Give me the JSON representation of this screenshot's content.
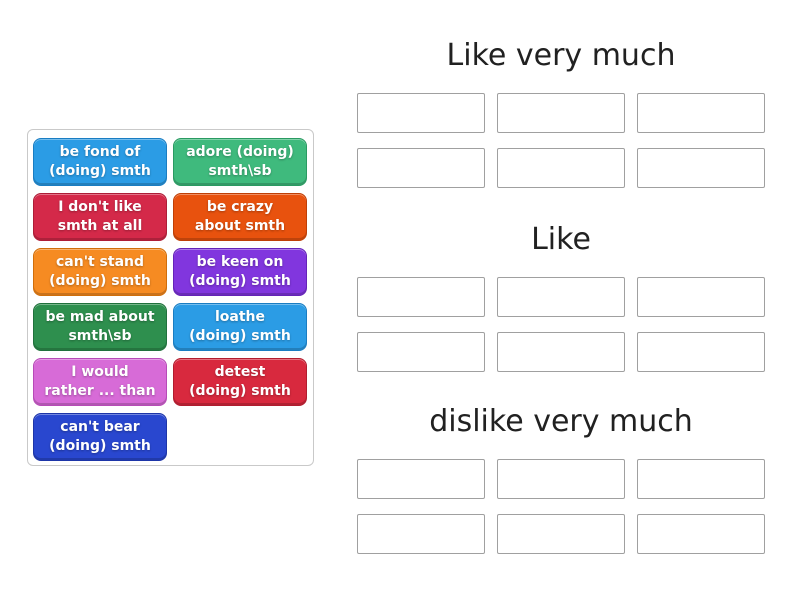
{
  "page": {
    "background_color": "#ffffff",
    "heading_color": "#212121",
    "slot_border_color": "#a0a0a0",
    "panel_border_color": "#c9c9c9"
  },
  "source_panel": {
    "chips": [
      {
        "line1": "be fond of",
        "line2": "(doing) smth",
        "label": "be fond of (doing) smth",
        "color": "#2b9ce5",
        "border": "#1a7dc2"
      },
      {
        "line1": "adore (doing)",
        "line2": "smth\\sb",
        "label": "adore (doing) smth\\sb",
        "color": "#3fba7d",
        "border": "#2a9a62"
      },
      {
        "line1": "I don't like",
        "line2": "smth at all",
        "label": "I don't like smth at all",
        "color": "#d42949",
        "border": "#ad1d37"
      },
      {
        "line1": "be crazy",
        "line2": "about smth",
        "label": "be crazy about smth",
        "color": "#e8520e",
        "border": "#bf3f06"
      },
      {
        "line1": "can't stand",
        "line2": "(doing) smth",
        "label": "can't stand (doing) smth",
        "color": "#f68b22",
        "border": "#d06e0b"
      },
      {
        "line1": "be keen on",
        "line2": "(doing) smth",
        "label": "be keen on (doing) smth",
        "color": "#8136de",
        "border": "#6523b8"
      },
      {
        "line1": "be mad about",
        "line2": "smth\\sb",
        "label": "be mad about smth\\sb",
        "color": "#2e8f4e",
        "border": "#20713c"
      },
      {
        "line1": "loathe",
        "line2": "(doing) smth",
        "label": "loathe (doing) smth",
        "color": "#2b9ce5",
        "border": "#1a7dc2"
      },
      {
        "line1": "I would",
        "line2": "rather ... than",
        "label": "I would rather ... than",
        "color": "#d76bd7",
        "border": "#b74bb7"
      },
      {
        "line1": "detest",
        "line2": "(doing) smth",
        "label": "detest (doing) smth",
        "color": "#d8293e",
        "border": "#b11d2f"
      },
      {
        "line1": "can't bear",
        "line2": "(doing) smth",
        "label": "can't bear (doing) smth",
        "color": "#2947cf",
        "border": "#1d35a8"
      }
    ]
  },
  "groups": [
    {
      "title": "Like very much",
      "slot_count": 6
    },
    {
      "title": "Like",
      "slot_count": 6
    },
    {
      "title": "dislike very much",
      "slot_count": 6
    }
  ]
}
